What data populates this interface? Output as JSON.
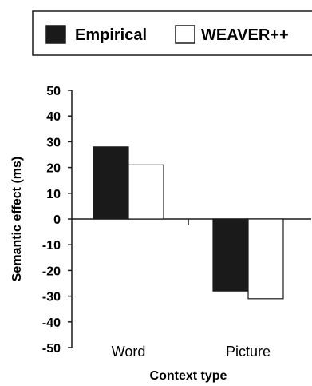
{
  "chart_data": {
    "type": "bar",
    "categories": [
      "Word",
      "Picture"
    ],
    "series": [
      {
        "name": "Empirical",
        "values": [
          28,
          -28
        ],
        "color": "#1a1a1a"
      },
      {
        "name": "WEAVER++",
        "values": [
          21,
          -31
        ],
        "color": "#ffffff"
      }
    ],
    "xlabel": "Context type",
    "ylabel": "Semantic effect (ms)",
    "ylim": [
      -50,
      50
    ],
    "yticks": [
      50,
      40,
      30,
      20,
      10,
      0,
      -10,
      -20,
      -30,
      -40,
      -50
    ],
    "grid": false,
    "legend": "top"
  }
}
